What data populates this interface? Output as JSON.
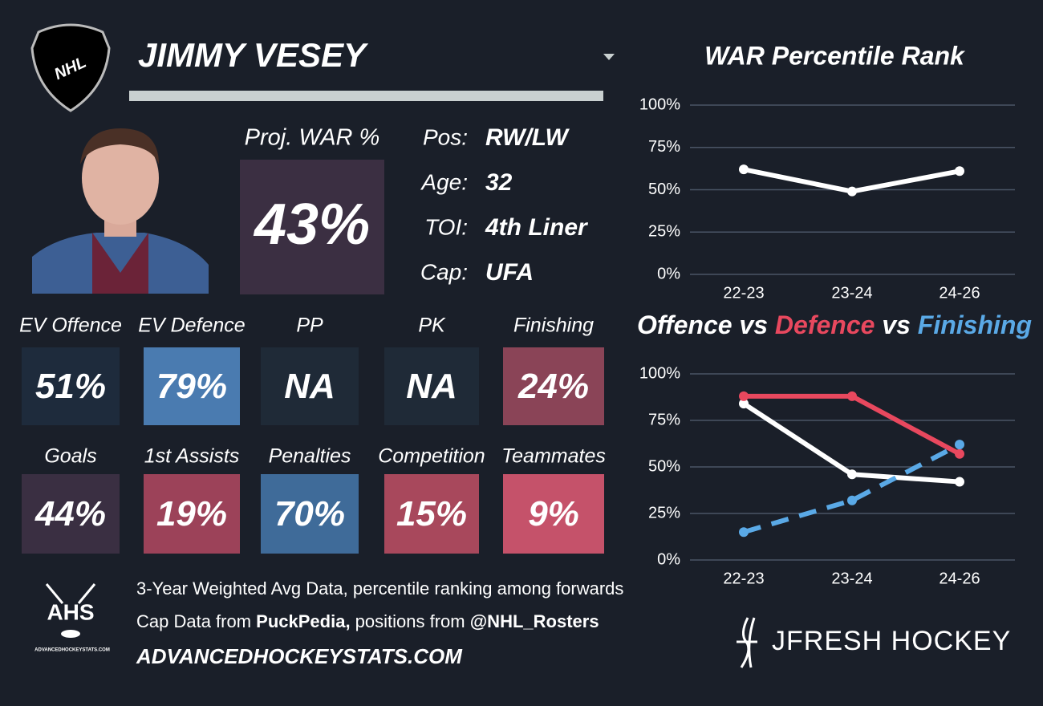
{
  "header": {
    "league": "NHL",
    "player": "JIMMY VESEY"
  },
  "proj_war": {
    "label": "Proj. WAR %",
    "value": "43%"
  },
  "info": [
    {
      "label": "Pos:",
      "value": "RW/LW"
    },
    {
      "label": "Age:",
      "value": "32"
    },
    {
      "label": "TOI:",
      "value": "4th Liner"
    },
    {
      "label": "Cap:",
      "value": "UFA"
    }
  ],
  "tiles": [
    {
      "label": "EV Offence",
      "value": "51%",
      "color": "#1e2b3c"
    },
    {
      "label": "EV Defence",
      "value": "79%",
      "color": "#4a7bb0"
    },
    {
      "label": "PP",
      "value": "NA",
      "color": "#1f2a37"
    },
    {
      "label": "PK",
      "value": "NA",
      "color": "#1f2a37"
    },
    {
      "label": "Finishing",
      "value": "24%",
      "color": "#8a4457"
    },
    {
      "label": "Goals",
      "value": "44%",
      "color": "#3a2f42"
    },
    {
      "label": "1st Assists",
      "value": "19%",
      "color": "#9c4259"
    },
    {
      "label": "Penalties",
      "value": "70%",
      "color": "#3f6b99"
    },
    {
      "label": "Competition",
      "value": "15%",
      "color": "#a8485c"
    },
    {
      "label": "Teammates",
      "value": "9%",
      "color": "#c5526a"
    }
  ],
  "footer": {
    "logo": "AHS",
    "logo_site": "ADVANCEDHOCKEYSTATS.COM",
    "note": "3-Year Weighted Avg Data, percentile ranking among forwards",
    "source": [
      "Cap Data from ",
      "PuckPedia,",
      " positions from ",
      "@NHL_Rosters"
    ],
    "site": "ADVANCEDHOCKEYSTATS.COM",
    "brand": "JFRESH HOCKEY"
  },
  "chart_data": [
    {
      "type": "line",
      "title": "WAR Percentile Rank",
      "categories": [
        "22-23",
        "23-24",
        "24-26"
      ],
      "values": [
        62,
        49,
        61
      ],
      "color": "#ffffff",
      "ylim": [
        0,
        100
      ],
      "yticks": [
        {
          "value": 0,
          "label": "0%"
        },
        {
          "value": 25,
          "label": "25%"
        },
        {
          "value": 50,
          "label": "50%"
        },
        {
          "value": 75,
          "label": "75%"
        },
        {
          "value": 100,
          "label": "100%"
        }
      ],
      "grid": true
    },
    {
      "type": "line",
      "title_joiner": "vs",
      "categories": [
        "22-23",
        "23-24",
        "24-26"
      ],
      "series": [
        {
          "name": "Offence",
          "color": "#ffffff",
          "values": [
            84,
            46,
            42
          ]
        },
        {
          "name": "Defence",
          "color": "#e8485e",
          "values": [
            88,
            88,
            57
          ]
        },
        {
          "name": "Finishing",
          "color": "#5aa9e6",
          "values": [
            15,
            32,
            62
          ],
          "dashed": true
        }
      ],
      "ylim": [
        0,
        100
      ],
      "yticks": [
        {
          "value": 0,
          "label": "0%"
        },
        {
          "value": 25,
          "label": "25%"
        },
        {
          "value": 50,
          "label": "50%"
        },
        {
          "value": 75,
          "label": "75%"
        },
        {
          "value": 100,
          "label": "100%"
        }
      ],
      "grid": true
    }
  ]
}
